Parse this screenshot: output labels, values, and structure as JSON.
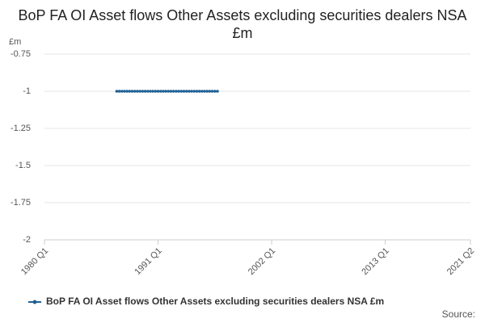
{
  "chart_data": {
    "type": "line",
    "title": "BoP FA OI Asset flows Other Assets excluding securities dealers NSA £m",
    "y_unit": "£m",
    "source": "Source:",
    "categories": [
      "1980 Q1",
      null,
      null,
      null,
      null,
      null,
      null,
      null,
      null,
      null,
      null,
      null,
      null,
      null,
      null,
      null,
      null,
      null,
      null,
      null,
      null,
      null,
      null,
      null,
      null,
      null,
      null,
      null,
      null,
      null,
      null,
      null,
      null,
      null,
      null,
      null,
      null,
      null,
      null,
      null,
      null,
      null,
      null,
      null,
      "1991 Q1",
      null,
      null,
      null,
      null,
      null,
      null,
      null,
      null,
      null,
      null,
      null,
      null,
      null,
      null,
      null,
      null,
      null,
      null,
      null,
      null,
      null,
      null,
      null,
      null,
      null,
      null,
      null,
      null,
      null,
      null,
      null,
      null,
      null,
      null,
      null,
      null,
      null,
      null,
      null,
      null,
      null,
      null,
      null,
      "2002 Q1",
      null,
      null,
      null,
      null,
      null,
      null,
      null,
      null,
      null,
      null,
      null,
      null,
      null,
      null,
      null,
      null,
      null,
      null,
      null,
      null,
      null,
      null,
      null,
      null,
      null,
      null,
      null,
      null,
      null,
      null,
      null,
      null,
      null,
      null,
      null,
      null,
      null,
      null,
      null,
      null,
      null,
      null,
      null,
      "2013 Q1",
      null,
      null,
      null,
      null,
      null,
      null,
      null,
      null,
      null,
      null,
      null,
      null,
      null,
      null,
      null,
      null,
      null,
      null,
      null,
      null,
      null,
      null,
      null,
      null,
      null,
      null,
      null,
      null,
      null,
      null,
      null,
      null,
      "2021 Q2"
    ],
    "series": [
      {
        "name": "BoP FA OI Asset flows Other Assets excluding securities dealers NSA £m",
        "color": "#206095",
        "values": [
          null,
          null,
          null,
          null,
          null,
          null,
          null,
          null,
          null,
          null,
          null,
          null,
          null,
          null,
          null,
          null,
          null,
          null,
          null,
          null,
          null,
          null,
          null,
          null,
          null,
          null,
          null,
          null,
          -1,
          -1,
          -1,
          -1,
          -1,
          -1,
          -1,
          -1,
          -1,
          -1,
          -1,
          -1,
          -1,
          -1,
          -1,
          -1,
          -1,
          -1,
          -1,
          -1,
          -1,
          -1,
          -1,
          -1,
          -1,
          -1,
          -1,
          -1,
          -1,
          -1,
          -1,
          -1,
          -1,
          -1,
          -1,
          -1,
          -1,
          -1,
          -1,
          -1,
          null,
          null,
          null,
          null,
          null,
          null,
          null,
          null,
          null,
          null,
          null,
          null,
          null,
          null,
          null,
          null,
          null,
          null,
          null,
          null,
          null,
          null,
          null,
          null,
          null,
          null,
          null,
          null,
          null,
          null,
          null,
          null,
          null,
          null,
          null,
          null,
          null,
          null,
          null,
          null,
          null,
          null,
          null,
          null,
          null,
          null,
          null,
          null,
          null,
          null,
          null,
          null,
          null,
          null,
          null,
          null,
          null,
          null,
          null,
          null,
          null,
          null,
          null,
          null,
          null,
          null,
          null,
          null,
          null,
          null,
          null,
          null,
          null,
          null,
          null,
          null,
          null,
          null,
          null,
          null,
          null,
          null,
          null,
          null,
          null,
          null,
          null,
          null,
          null,
          null,
          null,
          null,
          null,
          null,
          null,
          null,
          null,
          null
        ]
      }
    ],
    "ylim": [
      -2,
      -0.75
    ],
    "yticks": [
      -0.75,
      -1,
      -1.25,
      -1.5,
      -1.75,
      -2
    ],
    "grid": true,
    "legend": "bottom"
  }
}
